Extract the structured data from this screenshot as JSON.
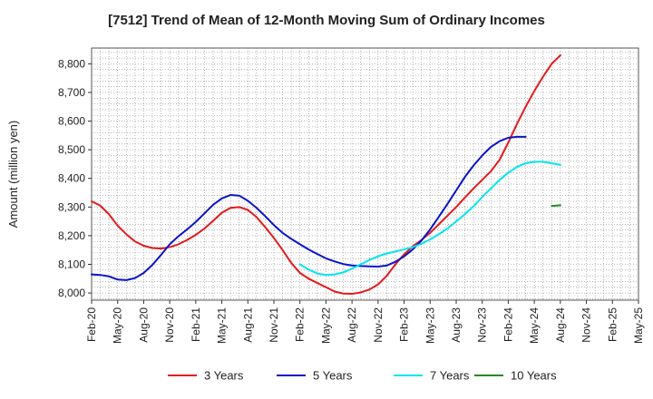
{
  "chart_data": {
    "type": "line",
    "title": "[7512]  Trend of Mean of 12-Month Moving Sum of Ordinary Incomes",
    "xlabel": "",
    "ylabel": "Amount (million yen)",
    "ylim": [
      7975,
      8855
    ],
    "yticks": [
      8000,
      8100,
      8200,
      8300,
      8400,
      8500,
      8600,
      8700,
      8800
    ],
    "ytick_labels": [
      "8,000",
      "8,100",
      "8,200",
      "8,300",
      "8,400",
      "8,500",
      "8,600",
      "8,700",
      "8,800"
    ],
    "x_months_start": "Feb-20",
    "xtick_labels": [
      "Feb-20",
      "May-20",
      "Aug-20",
      "Nov-20",
      "Feb-21",
      "May-21",
      "Aug-21",
      "Nov-21",
      "Feb-22",
      "May-22",
      "Aug-22",
      "Nov-22",
      "Feb-23",
      "May-23",
      "Aug-23",
      "Nov-23",
      "Feb-24",
      "May-24",
      "Aug-24",
      "Nov-24",
      "Feb-25",
      "May-25"
    ],
    "grid": true,
    "legend_position": "bottom",
    "series": [
      {
        "name": "3 Years",
        "color": "#e41a1c",
        "x": [
          0,
          1,
          2,
          3,
          4,
          5,
          6,
          7,
          8,
          9,
          10,
          11,
          12,
          13,
          14,
          15,
          16,
          17,
          18,
          19,
          20,
          21,
          22,
          23,
          24,
          25,
          26,
          27,
          28,
          29,
          30,
          31,
          32,
          33,
          34,
          35,
          36,
          37,
          38,
          39,
          40,
          41,
          42,
          43,
          44,
          45,
          46,
          47,
          48,
          49,
          50,
          51,
          52,
          53,
          54,
          55,
          56,
          57,
          58,
          59,
          60
        ],
        "values": [
          8320,
          8305,
          8275,
          8235,
          8205,
          8180,
          8165,
          8157,
          8155,
          8160,
          8170,
          8185,
          8203,
          8225,
          8252,
          8280,
          8297,
          8300,
          8290,
          8265,
          8230,
          8192,
          8150,
          8105,
          8070,
          8050,
          8035,
          8020,
          8005,
          7998,
          7997,
          8002,
          8012,
          8030,
          8060,
          8100,
          8135,
          8163,
          8185,
          8210,
          8240,
          8270,
          8300,
          8333,
          8365,
          8395,
          8425,
          8465,
          8525,
          8590,
          8650,
          8705,
          8755,
          8800,
          8830,
          null,
          null,
          null,
          null,
          null,
          null
        ]
      },
      {
        "name": "5 Years",
        "color": "#0a14c8",
        "x": [
          0,
          1,
          2,
          3,
          4,
          5,
          6,
          7,
          8,
          9,
          10,
          11,
          12,
          13,
          14,
          15,
          16,
          17,
          18,
          19,
          20,
          21,
          22,
          23,
          24,
          25,
          26,
          27,
          28,
          29,
          30,
          31,
          32,
          33,
          34,
          35,
          36,
          37,
          38,
          39,
          40,
          41,
          42,
          43,
          44,
          45,
          46,
          47,
          48,
          49,
          50,
          51,
          52,
          53,
          54,
          55,
          56,
          57,
          58,
          59,
          60
        ],
        "values": [
          8065,
          8063,
          8058,
          8047,
          8045,
          8052,
          8070,
          8098,
          8133,
          8170,
          8198,
          8222,
          8248,
          8278,
          8308,
          8330,
          8342,
          8340,
          8322,
          8297,
          8268,
          8237,
          8210,
          8189,
          8170,
          8152,
          8136,
          8121,
          8110,
          8101,
          8096,
          8094,
          8093,
          8092,
          8096,
          8109,
          8128,
          8152,
          8183,
          8222,
          8266,
          8311,
          8358,
          8405,
          8445,
          8480,
          8510,
          8530,
          8542,
          8545,
          8545,
          null,
          null,
          null,
          null,
          null,
          null,
          null,
          null,
          null,
          null
        ]
      },
      {
        "name": "7 Years",
        "color": "#00e5ee",
        "x": [
          24,
          25,
          26,
          27,
          28,
          29,
          30,
          31,
          32,
          33,
          34,
          35,
          36,
          37,
          38,
          39,
          40,
          41,
          42,
          43,
          44,
          45,
          46,
          47,
          48,
          49,
          50,
          51,
          52,
          53,
          54
        ],
        "values": [
          8100,
          8082,
          8068,
          8063,
          8065,
          8072,
          8085,
          8100,
          8115,
          8128,
          8138,
          8145,
          8152,
          8160,
          8172,
          8187,
          8205,
          8225,
          8250,
          8275,
          8303,
          8335,
          8365,
          8395,
          8420,
          8440,
          8453,
          8458,
          8458,
          8453,
          8447
        ]
      },
      {
        "name": "10 Years",
        "color": "#228b22",
        "x": [
          53,
          54
        ],
        "values": [
          8304,
          8306
        ]
      }
    ]
  }
}
